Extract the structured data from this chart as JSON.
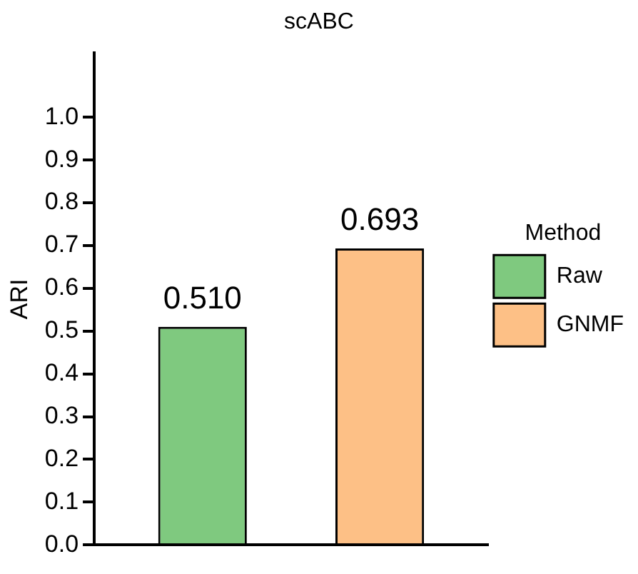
{
  "chart_data": {
    "type": "bar",
    "title": "scABC",
    "ylabel": "ARI",
    "categories": [
      null
    ],
    "series": [
      {
        "name": "Raw",
        "color": "#7fc97f",
        "values": [
          0.51
        ],
        "value_labels": [
          "0.510"
        ]
      },
      {
        "name": "GNMF",
        "color": "#fdc086",
        "values": [
          0.693
        ],
        "value_labels": [
          "0.693"
        ]
      }
    ],
    "legend_title": "Method",
    "legend": "right",
    "grid": false,
    "ylim": [
      0,
      1.15
    ],
    "yticks": [
      {
        "value": 0,
        "label": "0.0"
      },
      {
        "value": 0.1,
        "label": "0.1"
      },
      {
        "value": 0.2,
        "label": "0.2"
      },
      {
        "value": 0.3,
        "label": "0.3"
      },
      {
        "value": 0.4,
        "label": "0.4"
      },
      {
        "value": 0.5,
        "label": "0.5"
      },
      {
        "value": 0.6,
        "label": "0.6"
      },
      {
        "value": 0.7,
        "label": "0.7"
      },
      {
        "value": 0.8,
        "label": "0.8"
      },
      {
        "value": 0.9,
        "label": "0.9"
      },
      {
        "value": 1,
        "label": "1.0"
      }
    ]
  }
}
